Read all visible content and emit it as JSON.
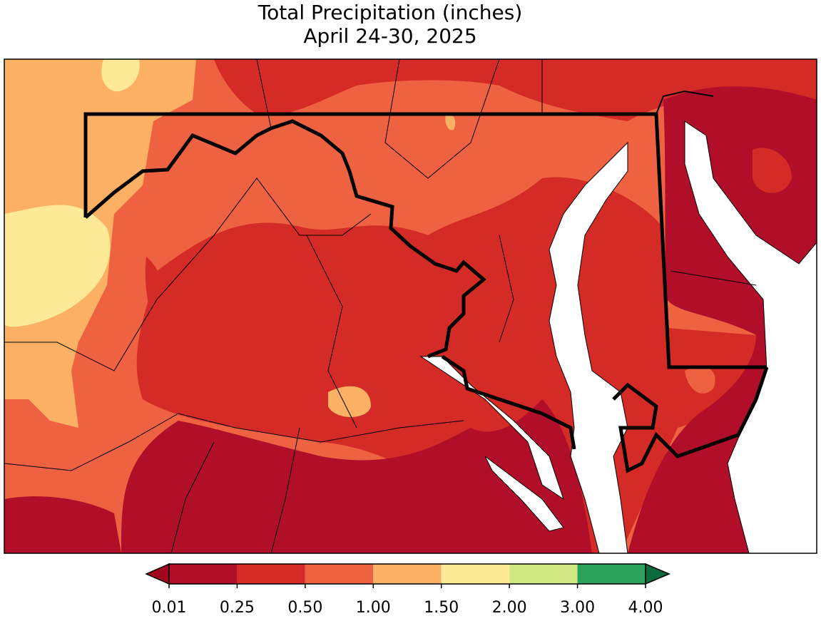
{
  "title": {
    "line1": "Total Precipitation (inches)",
    "line2": "April 24-30, 2025"
  },
  "colorbar": {
    "ticks": [
      0.01,
      0.25,
      {
        "value": 0.5,
        "label": "0.50"
      },
      {
        "value": 1,
        "label": "1.00"
      },
      {
        "value": 1.5,
        "label": "1.50"
      },
      {
        "value": 2,
        "label": "2.00"
      },
      {
        "value": 3,
        "label": "3.00"
      },
      {
        "value": 4,
        "label": "4.00"
      }
    ],
    "colors": [
      "#b10e29",
      "#d42b26",
      "#ef6241",
      "#fbb064",
      "#fee997",
      "#cfe882",
      "#2ba05a"
    ],
    "under_color": "#a0071f",
    "over_color": "#0c6b3c"
  }
}
